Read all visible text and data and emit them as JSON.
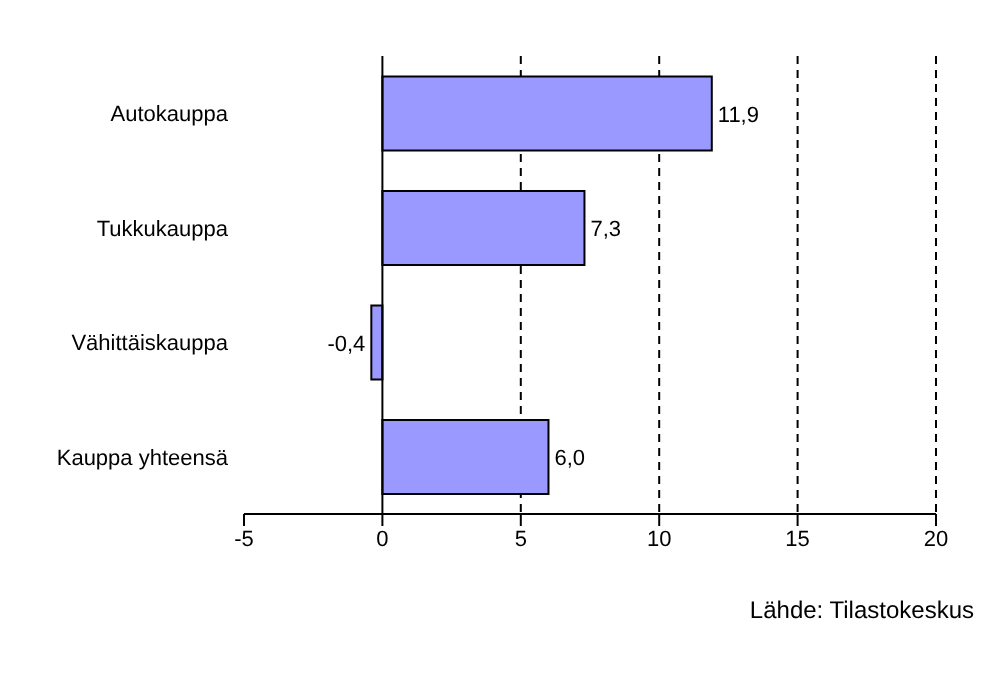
{
  "chart_data": {
    "type": "bar",
    "orientation": "horizontal",
    "categories": [
      "Autokauppa",
      "Tukkukauppa",
      "Vähittäiskauppa",
      "Kauppa yhteensä"
    ],
    "values": [
      11.9,
      7.3,
      -0.4,
      6.0
    ],
    "value_labels": [
      "11,9",
      "7,3",
      "-0,4",
      "6,0"
    ],
    "color": "#9999ff",
    "xlim": [
      -5,
      20
    ],
    "xticks": [
      -5,
      0,
      5,
      10,
      15,
      20
    ],
    "grid": "x",
    "legend": false,
    "annotations": [
      "Lähde: Tilastokeskus"
    ]
  }
}
